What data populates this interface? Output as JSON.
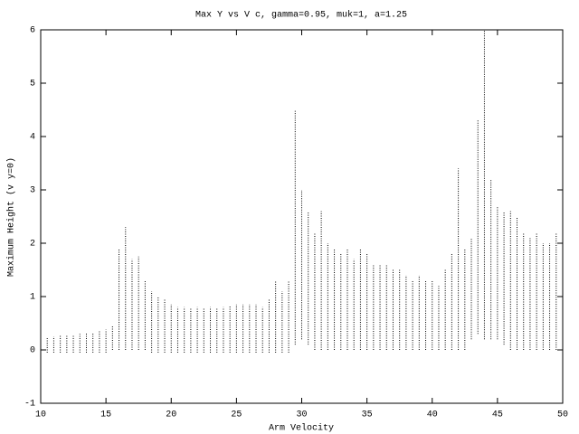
{
  "chart_data": {
    "type": "range",
    "title": "Max Y vs V c, gamma=0.95, muk=1, a=1.25",
    "x_label": "Arm Velocity",
    "y_label": "Maximum Height (v y=0)",
    "color": "#000000",
    "x": [
      10,
      10.5,
      11,
      11.5,
      12,
      12.5,
      13,
      13.5,
      14,
      14.5,
      15,
      15.5,
      16,
      16.5,
      17,
      17.5,
      18,
      18.5,
      19,
      19.5,
      20,
      20.5,
      21,
      21.5,
      22,
      22.5,
      23,
      23.5,
      24,
      24.5,
      25,
      25.5,
      26,
      26.5,
      27,
      27.5,
      28,
      28.5,
      29,
      29.5,
      30,
      30.5,
      31,
      31.5,
      32,
      32.5,
      33,
      33.5,
      34,
      34.5,
      35,
      35.5,
      36,
      36.5,
      37,
      37.5,
      38,
      38.5,
      39,
      39.5,
      40,
      40.5,
      41,
      41.5,
      42,
      42.5,
      43,
      43.5,
      44,
      44.5,
      45,
      45.5,
      46,
      46.5,
      47,
      47.5,
      48,
      48.5,
      49,
      49.5,
      50
    ],
    "low": [
      -0.05,
      -0.05,
      -0.05,
      -0.05,
      -0.05,
      -0.05,
      -0.05,
      -0.05,
      -0.05,
      -0.05,
      -0.05,
      0,
      0,
      0,
      0,
      0,
      0,
      -0.05,
      -0.05,
      -0.05,
      -0.05,
      -0.05,
      -0.05,
      -0.05,
      -0.05,
      -0.05,
      -0.05,
      -0.05,
      -0.05,
      -0.05,
      -0.05,
      -0.05,
      -0.05,
      -0.05,
      -0.05,
      -0.05,
      -0.05,
      -0.05,
      -0.05,
      0.1,
      0.2,
      0.1,
      0,
      0,
      0,
      0,
      0,
      0,
      0,
      0,
      0,
      0,
      0,
      0,
      0,
      0,
      0,
      0,
      0,
      0,
      0,
      0,
      0,
      0,
      0,
      0,
      0.2,
      0.3,
      0.2,
      0.2,
      0.2,
      0.1,
      0,
      0,
      0,
      0,
      0,
      0,
      0,
      0,
      0
    ],
    "high": [
      0.22,
      0.24,
      0.25,
      0.27,
      0.27,
      0.28,
      0.3,
      0.32,
      0.33,
      0.35,
      0.38,
      0.45,
      1.9,
      2.3,
      1.7,
      1.75,
      1.3,
      1.1,
      1.0,
      0.95,
      0.85,
      0.8,
      0.8,
      0.78,
      0.8,
      0.78,
      0.8,
      0.78,
      0.8,
      0.82,
      0.85,
      0.85,
      0.85,
      0.85,
      0.8,
      0.95,
      1.3,
      1.1,
      1.3,
      4.5,
      3.0,
      2.6,
      2.2,
      2.6,
      2.0,
      1.9,
      1.8,
      1.9,
      1.7,
      1.9,
      1.8,
      1.6,
      1.6,
      1.6,
      1.5,
      1.5,
      1.4,
      1.3,
      1.4,
      1.3,
      1.3,
      1.2,
      1.5,
      1.8,
      3.4,
      1.9,
      2.1,
      4.3,
      6.0,
      3.2,
      2.7,
      2.6,
      2.6,
      2.5,
      2.2,
      2.1,
      2.2,
      2.0,
      2.0,
      2.2,
      1.8
    ],
    "xlim": [
      10,
      50
    ],
    "xticks": [
      10,
      15,
      20,
      25,
      30,
      35,
      40,
      45,
      50
    ],
    "ylim": [
      -1,
      6
    ],
    "yticks": [
      -1,
      0,
      1,
      2,
      3,
      4,
      5,
      6
    ]
  }
}
